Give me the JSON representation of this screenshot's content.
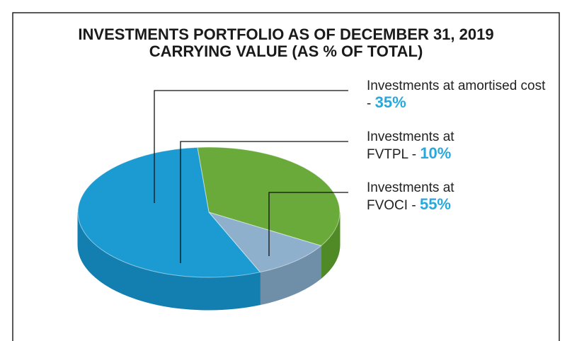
{
  "chart_data": {
    "type": "pie",
    "title": "INVESTMENTS PORTFOLIO AS OF DECEMBER 31, 2019",
    "subtitle": "CARRYING VALUE (AS % OF TOTAL)",
    "categories": [
      "Investments at amortised cost -",
      "Investments at FVTPL -",
      "Investments at FVOCI -"
    ],
    "values": [
      35,
      10,
      55
    ],
    "value_labels": [
      "35%",
      "10%",
      "55%"
    ],
    "colors": [
      "#6aaa3a",
      "#8fb0cc",
      "#1b9bd1"
    ],
    "side_colors": [
      "#4f8a27",
      "#6f8fa9",
      "#137fb0"
    ]
  }
}
